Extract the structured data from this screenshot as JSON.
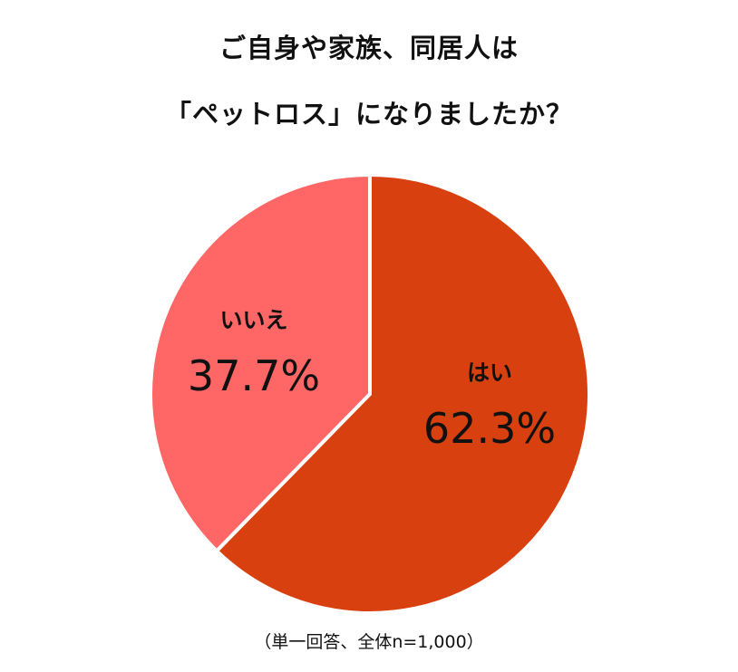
{
  "title": {
    "line1": "ご自身や家族、同居人は",
    "line2": "「ペットロス」になりましたか？"
  },
  "note": "（単一回答、全体n=1,000）",
  "colors": {
    "yes": "#D9400F",
    "no": "#FF6666",
    "separator": "#ffffff"
  },
  "labels": {
    "yes_name": "はい",
    "yes_value": "62.3%",
    "no_name": "いいえ",
    "no_value": "37.7%"
  },
  "chart_data": {
    "type": "pie",
    "title": "ご自身や家族、同居人は「ペットロス」になりましたか？",
    "categories": [
      "はい",
      "いいえ"
    ],
    "values": [
      62.3,
      37.7
    ],
    "unit": "%",
    "colors": [
      "#D9400F",
      "#FF6666"
    ],
    "start_angle": "12 o'clock, clockwise",
    "legend": "none (labels inside slices)",
    "annotation": "（単一回答、全体n=1,000）"
  }
}
